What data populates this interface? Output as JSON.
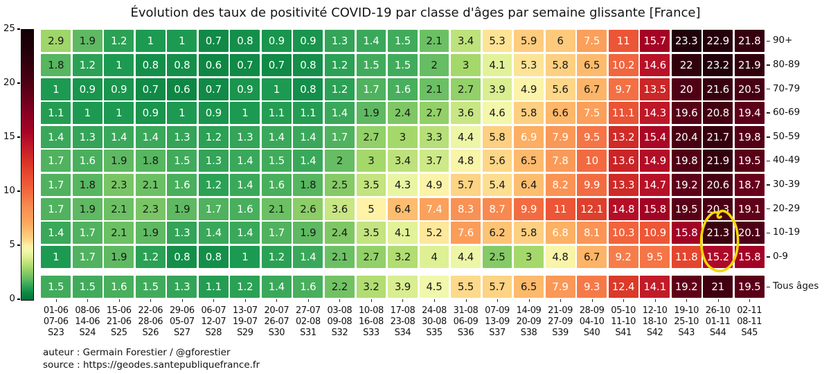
{
  "title": "Évolution des taux de positivité COVID-19 par classe d'âges par semaine glissante [France]",
  "footer": {
    "author_line": "auteur : Germain Forestier / @gforestier",
    "source_line": "source : https://geodes.santepubliquefrance.fr"
  },
  "chart_data": {
    "type": "heatmap",
    "title": "Évolution des taux de positivité COVID-19 par classe d'âges par semaine glissante [France]",
    "colorbar": {
      "min": 0,
      "max": 25,
      "ticks": [
        0,
        5,
        10,
        15,
        20,
        25
      ],
      "position": "left",
      "low_color": "#027436",
      "high_color": "#120005"
    },
    "columns": [
      {
        "start": "01-06",
        "end": "07-06",
        "week": "S23"
      },
      {
        "start": "08-06",
        "end": "14-06",
        "week": "S24"
      },
      {
        "start": "15-06",
        "end": "21-06",
        "week": "S25"
      },
      {
        "start": "22-06",
        "end": "28-06",
        "week": "S26"
      },
      {
        "start": "29-06",
        "end": "05-07",
        "week": "S27"
      },
      {
        "start": "06-07",
        "end": "12-07",
        "week": "S28"
      },
      {
        "start": "13-07",
        "end": "19-07",
        "week": "S29"
      },
      {
        "start": "20-07",
        "end": "26-07",
        "week": "S30"
      },
      {
        "start": "27-07",
        "end": "02-08",
        "week": "S31"
      },
      {
        "start": "03-08",
        "end": "09-08",
        "week": "S32"
      },
      {
        "start": "10-08",
        "end": "16-08",
        "week": "S33"
      },
      {
        "start": "17-08",
        "end": "23-08",
        "week": "S34"
      },
      {
        "start": "24-08",
        "end": "30-08",
        "week": "S35"
      },
      {
        "start": "31-08",
        "end": "06-09",
        "week": "S36"
      },
      {
        "start": "07-09",
        "end": "13-09",
        "week": "S37"
      },
      {
        "start": "14-09",
        "end": "20-09",
        "week": "S38"
      },
      {
        "start": "21-09",
        "end": "27-09",
        "week": "S39"
      },
      {
        "start": "28-09",
        "end": "04-10",
        "week": "S40"
      },
      {
        "start": "05-10",
        "end": "11-10",
        "week": "S41"
      },
      {
        "start": "12-10",
        "end": "18-10",
        "week": "S42"
      },
      {
        "start": "19-10",
        "end": "25-10",
        "week": "S43"
      },
      {
        "start": "26-10",
        "end": "01-11",
        "week": "S44"
      },
      {
        "start": "02-11",
        "end": "08-11",
        "week": "S45"
      }
    ],
    "rows": [
      "90+",
      "80-89",
      "70-79",
      "60-69",
      "50-59",
      "40-49",
      "30-39",
      "20-29",
      "10-19",
      "0-9"
    ],
    "summary_row": "Tous âges",
    "series": [
      {
        "name": "90+",
        "values": [
          2.9,
          1.9,
          1.2,
          1,
          1,
          0.7,
          0.8,
          0.9,
          0.9,
          1.3,
          1.4,
          1.5,
          2.1,
          3.4,
          5.3,
          5.9,
          6,
          7.5,
          11,
          15.7,
          23.3,
          22.9,
          21.8
        ]
      },
      {
        "name": "80-89",
        "values": [
          1.8,
          1.2,
          1,
          0.8,
          0.8,
          0.6,
          0.7,
          0.7,
          0.8,
          1.2,
          1.5,
          1.5,
          2,
          3,
          4.1,
          5.3,
          5.8,
          6.5,
          10.2,
          14.6,
          22,
          23.2,
          21.9
        ]
      },
      {
        "name": "70-79",
        "values": [
          1,
          0.9,
          0.9,
          0.7,
          0.6,
          0.7,
          0.9,
          1,
          0.8,
          1.2,
          1.7,
          1.6,
          2.1,
          2.7,
          3.9,
          4.9,
          5.6,
          6.7,
          9.7,
          13.5,
          20,
          21.6,
          20.5
        ]
      },
      {
        "name": "60-69",
        "values": [
          1.1,
          1,
          1,
          0.9,
          1,
          0.9,
          1,
          1.1,
          1.1,
          1.4,
          1.9,
          2.4,
          2.7,
          3.6,
          4.6,
          5.8,
          6.6,
          7.5,
          11.1,
          14.3,
          19.6,
          20.8,
          19.4
        ]
      },
      {
        "name": "50-59",
        "values": [
          1.4,
          1.3,
          1.4,
          1.4,
          1.3,
          1.2,
          1.3,
          1.4,
          1.4,
          1.7,
          2.7,
          3,
          3.3,
          4.4,
          5.8,
          6.9,
          7.9,
          9.5,
          13.2,
          15.4,
          20.4,
          21.7,
          19.8
        ]
      },
      {
        "name": "40-49",
        "values": [
          1.7,
          1.6,
          1.9,
          1.8,
          1.5,
          1.3,
          1.4,
          1.5,
          1.4,
          2,
          3,
          3.4,
          3.7,
          4.8,
          5.6,
          6.5,
          7.8,
          10,
          13.6,
          14.9,
          19.8,
          21.9,
          19.5
        ]
      },
      {
        "name": "30-39",
        "values": [
          1.7,
          1.8,
          2.3,
          2.1,
          1.6,
          1.2,
          1.4,
          1.6,
          1.8,
          2.5,
          3.5,
          4.3,
          4.9,
          5.7,
          5.4,
          6.4,
          8.2,
          9.9,
          13.3,
          14.7,
          19.2,
          20.6,
          18.7
        ]
      },
      {
        "name": "20-29",
        "values": [
          1.7,
          1.9,
          2.1,
          2.3,
          1.9,
          1.7,
          1.6,
          2.1,
          2.6,
          3.6,
          5,
          6.4,
          7.4,
          8.3,
          8.7,
          9.9,
          11,
          12.1,
          14.8,
          15.8,
          19.5,
          20.3,
          19.1
        ]
      },
      {
        "name": "10-19",
        "values": [
          1.4,
          1.7,
          2.1,
          1.9,
          1.3,
          1.4,
          1.4,
          1.7,
          1.9,
          2.4,
          3.5,
          4.1,
          5.2,
          7.6,
          6.2,
          5.8,
          6.8,
          8.1,
          10.3,
          10.9,
          15.8,
          21.3,
          20.1
        ]
      },
      {
        "name": "0-9",
        "values": [
          1,
          1.7,
          1.9,
          1.2,
          0.8,
          0.8,
          1,
          1.2,
          1.4,
          2.1,
          2.7,
          3.2,
          4,
          4.4,
          2.5,
          3,
          4.8,
          6.7,
          9.2,
          9.5,
          11.8,
          15.2,
          15.8
        ]
      }
    ],
    "summary_values": [
      1.5,
      1.5,
      1.6,
      1.5,
      1.3,
      1.1,
      1.2,
      1.4,
      1.6,
      2.2,
      3.2,
      3.9,
      4.5,
      5.5,
      5.7,
      6.5,
      7.9,
      9.3,
      12.4,
      14.1,
      19.2,
      21,
      19.5
    ],
    "colormap_stops": [
      [
        0,
        "#027436"
      ],
      [
        0.7,
        "#108a46"
      ],
      [
        1,
        "#1d9a51"
      ],
      [
        1.5,
        "#41ab5c"
      ],
      [
        2,
        "#66bd63"
      ],
      [
        2.5,
        "#85ca66"
      ],
      [
        3,
        "#a5d86a"
      ],
      [
        3.5,
        "#c3e47f"
      ],
      [
        4,
        "#def094"
      ],
      [
        4.5,
        "#f1f8ab"
      ],
      [
        5,
        "#fdf2a6"
      ],
      [
        5.5,
        "#fdd98a"
      ],
      [
        6,
        "#fdc97b"
      ],
      [
        6.5,
        "#fdba6c"
      ],
      [
        7,
        "#fcab60"
      ],
      [
        7.5,
        "#fb9f5a"
      ],
      [
        8.5,
        "#f98e52"
      ],
      [
        9.5,
        "#f57546"
      ],
      [
        10.5,
        "#f15e3a"
      ],
      [
        11.5,
        "#e74c31"
      ],
      [
        12.5,
        "#da3827"
      ],
      [
        13.5,
        "#cc2627"
      ],
      [
        14.5,
        "#bb1428"
      ],
      [
        15.5,
        "#a80426"
      ],
      [
        17,
        "#8c0022"
      ],
      [
        18.5,
        "#6d001c"
      ],
      [
        20,
        "#4f0015"
      ],
      [
        21.5,
        "#38000e"
      ],
      [
        23,
        "#22000a"
      ],
      [
        25,
        "#120005"
      ]
    ],
    "annotation": {
      "type": "hand-drawn ellipse",
      "color": "#f2d800",
      "highlighted_cells": [
        {
          "row": "10-19",
          "week": "S44",
          "value": 21.3
        },
        {
          "row": "0-9",
          "week": "S44",
          "value": 15.2
        }
      ]
    }
  }
}
